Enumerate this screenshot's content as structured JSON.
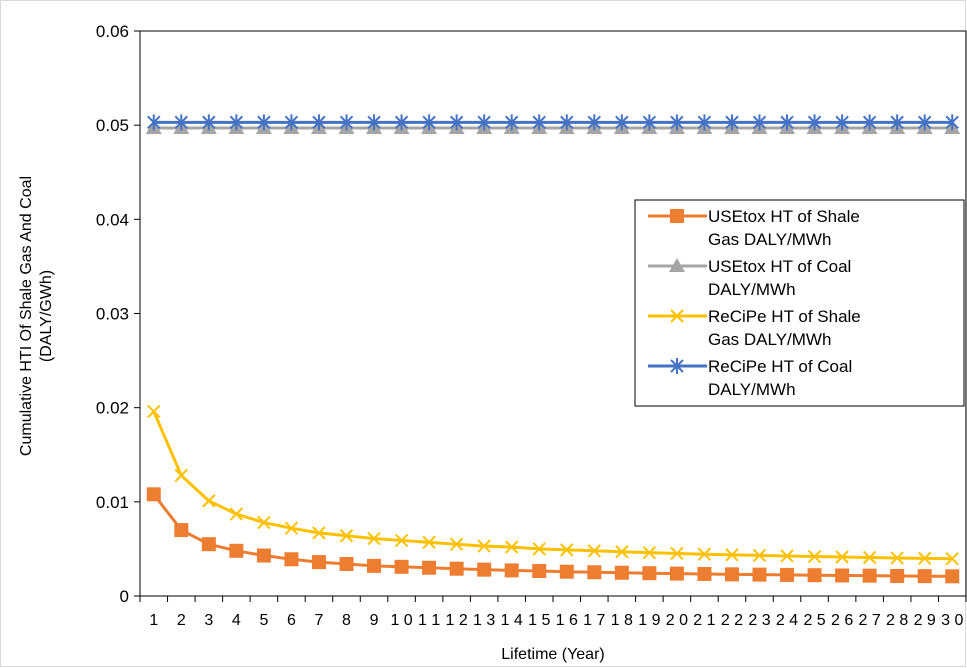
{
  "chart_data": {
    "type": "line",
    "title": "",
    "xlabel": "Lifetime (Year)",
    "ylabel_line1": "Cumulative HTI Of Shale Gas And Coal",
    "ylabel_line2": "(DALY/GWh)",
    "ylim": [
      0,
      0.06
    ],
    "y_ticks": [
      "0",
      "0.01",
      "0.02",
      "0.03",
      "0.04",
      "0.05",
      "0.06"
    ],
    "categories": [
      "1",
      "2",
      "3",
      "4",
      "5",
      "6",
      "7",
      "8",
      "9",
      "10",
      "11",
      "12",
      "13",
      "14",
      "15",
      "16",
      "17",
      "18",
      "19",
      "20",
      "21",
      "22",
      "23",
      "24",
      "25",
      "26",
      "27",
      "28",
      "29",
      "30"
    ],
    "x_tick_labels": [
      "1",
      "2",
      "3",
      "4",
      "5",
      "6",
      "7",
      "8",
      "9",
      "1 0",
      "1 1",
      "1 2",
      "1 3",
      "1 4",
      "1 5",
      "1 6",
      "1 7",
      "1 8",
      "1 9",
      "2 0",
      "2 1",
      "2 2",
      "2 3",
      "2 4",
      "2 5",
      "2 6",
      "2 7",
      "2 8",
      "2 9",
      "3 0"
    ],
    "grid": false,
    "legend_position": "right",
    "series": [
      {
        "name": "USEtox HT of Shale Gas DALY/MWh",
        "legend_lines": [
          "USEtox HT of Shale",
          "Gas DALY/MWh"
        ],
        "color": "#ed7d31",
        "marker": "square",
        "values": [
          0.0108,
          0.007,
          0.0055,
          0.0048,
          0.0043,
          0.0039,
          0.0036,
          0.0034,
          0.0032,
          0.0031,
          0.003,
          0.0029,
          0.0028,
          0.00272,
          0.00265,
          0.00258,
          0.00252,
          0.00247,
          0.00242,
          0.00238,
          0.00234,
          0.0023,
          0.00227,
          0.00224,
          0.00221,
          0.00218,
          0.00216,
          0.00213,
          0.00211,
          0.00209
        ]
      },
      {
        "name": "USEtox HT of Coal DALY/MWh",
        "legend_lines": [
          "USEtox HT of Coal",
          "DALY/MWh"
        ],
        "color": "#a5a5a5",
        "marker": "triangle",
        "values": [
          0.0497,
          0.0497,
          0.0497,
          0.0497,
          0.0497,
          0.0497,
          0.0497,
          0.0497,
          0.0497,
          0.0497,
          0.0497,
          0.0497,
          0.0497,
          0.0497,
          0.0497,
          0.0497,
          0.0497,
          0.0497,
          0.0497,
          0.0497,
          0.0497,
          0.0497,
          0.0497,
          0.0497,
          0.0497,
          0.0497,
          0.0497,
          0.0497,
          0.0497,
          0.0497
        ]
      },
      {
        "name": "ReCiPe HT of Shale Gas DALY/MWh",
        "legend_lines": [
          "ReCiPe HT of Shale",
          "Gas DALY/MWh"
        ],
        "color": "#ffc000",
        "marker": "x",
        "values": [
          0.0196,
          0.0128,
          0.0101,
          0.0087,
          0.0078,
          0.0072,
          0.0067,
          0.0064,
          0.0061,
          0.0059,
          0.0057,
          0.0055,
          0.0053,
          0.0052,
          0.005,
          0.0049,
          0.0048,
          0.0047,
          0.0046,
          0.00452,
          0.00444,
          0.00437,
          0.00431,
          0.00425,
          0.00419,
          0.00414,
          0.00409,
          0.00404,
          0.004,
          0.00396
        ]
      },
      {
        "name": "ReCiPe HT of Coal DALY/MWh",
        "legend_lines": [
          "ReCiPe HT of Coal",
          "DALY/MWh"
        ],
        "color": "#4472c4",
        "marker": "asterisk",
        "values": [
          0.0503,
          0.0503,
          0.0503,
          0.0503,
          0.0503,
          0.0503,
          0.0503,
          0.0503,
          0.0503,
          0.0503,
          0.0503,
          0.0503,
          0.0503,
          0.0503,
          0.0503,
          0.0503,
          0.0503,
          0.0503,
          0.0503,
          0.0503,
          0.0503,
          0.0503,
          0.0503,
          0.0503,
          0.0503,
          0.0503,
          0.0503,
          0.0503,
          0.0503,
          0.0503
        ]
      }
    ]
  }
}
